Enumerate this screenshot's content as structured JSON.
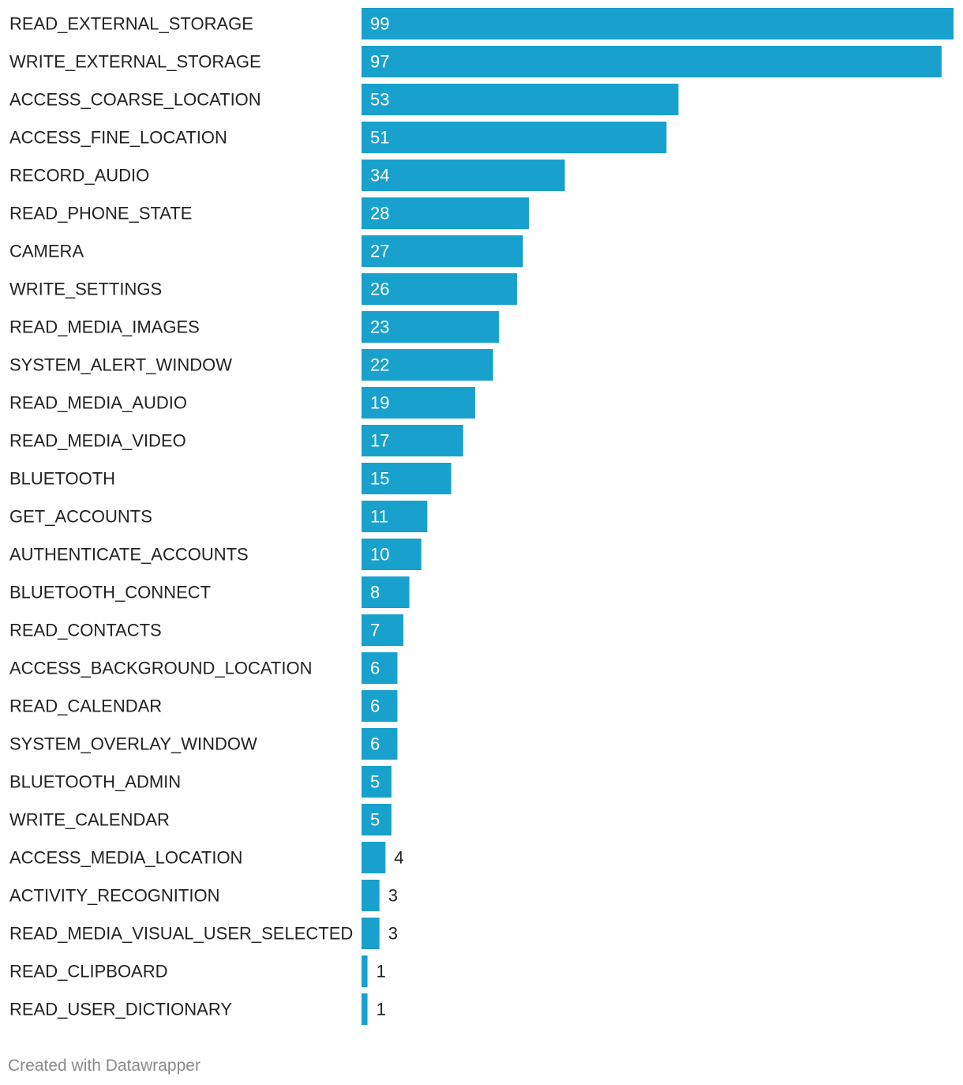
{
  "chart_data": {
    "type": "bar",
    "orientation": "horizontal",
    "bar_color": "#18a1cd",
    "inside_label_color": "#ffffff",
    "outside_label_color": "#222222",
    "category_label_color": "#222222",
    "categories": [
      "READ_EXTERNAL_STORAGE",
      "WRITE_EXTERNAL_STORAGE",
      "ACCESS_COARSE_LOCATION",
      "ACCESS_FINE_LOCATION",
      "RECORD_AUDIO",
      "READ_PHONE_STATE",
      "CAMERA",
      "WRITE_SETTINGS",
      "READ_MEDIA_IMAGES",
      "SYSTEM_ALERT_WINDOW",
      "READ_MEDIA_AUDIO",
      "READ_MEDIA_VIDEO",
      "BLUETOOTH",
      "GET_ACCOUNTS",
      "AUTHENTICATE_ACCOUNTS",
      "BLUETOOTH_CONNECT",
      "READ_CONTACTS",
      "ACCESS_BACKGROUND_LOCATION",
      "READ_CALENDAR",
      "SYSTEM_OVERLAY_WINDOW",
      "BLUETOOTH_ADMIN",
      "WRITE_CALENDAR",
      "ACCESS_MEDIA_LOCATION",
      "ACTIVITY_RECOGNITION",
      "READ_MEDIA_VISUAL_USER_SELECTED",
      "READ_CLIPBOARD",
      "READ_USER_DICTIONARY"
    ],
    "values": [
      99,
      97,
      53,
      51,
      34,
      28,
      27,
      26,
      23,
      22,
      19,
      17,
      15,
      11,
      10,
      8,
      7,
      6,
      6,
      6,
      5,
      5,
      4,
      3,
      3,
      1,
      1
    ],
    "xlim": [
      0,
      99
    ],
    "grid": false,
    "legend": "none"
  },
  "footer": {
    "credit": "Created with Datawrapper"
  }
}
